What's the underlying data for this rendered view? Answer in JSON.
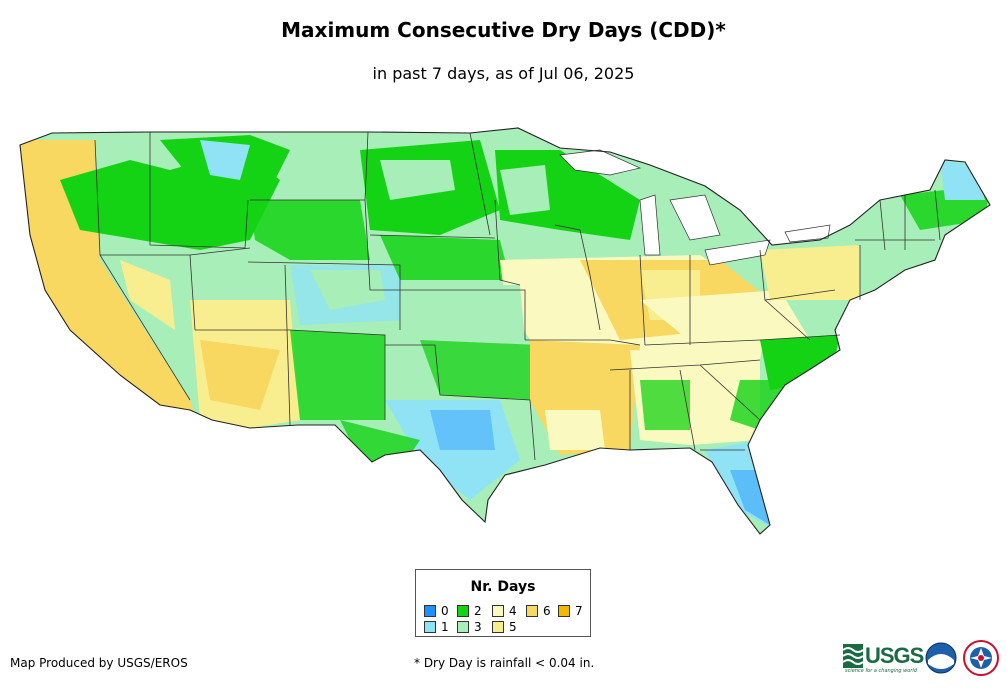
{
  "title": "Maximum Consecutive Dry Days (CDD)*",
  "subtitle": "in past 7 days, as of Jul 06, 2025",
  "legend": {
    "title": "Nr. Days",
    "items": [
      {
        "label": "0",
        "color": "#1e90ff"
      },
      {
        "label": "1",
        "color": "#8fe3f5"
      },
      {
        "label": "2",
        "color": "#14d214"
      },
      {
        "label": "3",
        "color": "#a8eeb8"
      },
      {
        "label": "4",
        "color": "#fafac0"
      },
      {
        "label": "5",
        "color": "#f8ee90"
      },
      {
        "label": "6",
        "color": "#f8d860"
      },
      {
        "label": "7",
        "color": "#f5b800"
      }
    ]
  },
  "credit": "Map Produced by USGS/EROS",
  "footnote": "* Dry Day is rainfall < 0.04 in.",
  "logos": {
    "usgs": "USGS",
    "usgs_tagline": "science for a changing world",
    "noaa": "noaa-logo",
    "nws": "nws-logo"
  }
}
